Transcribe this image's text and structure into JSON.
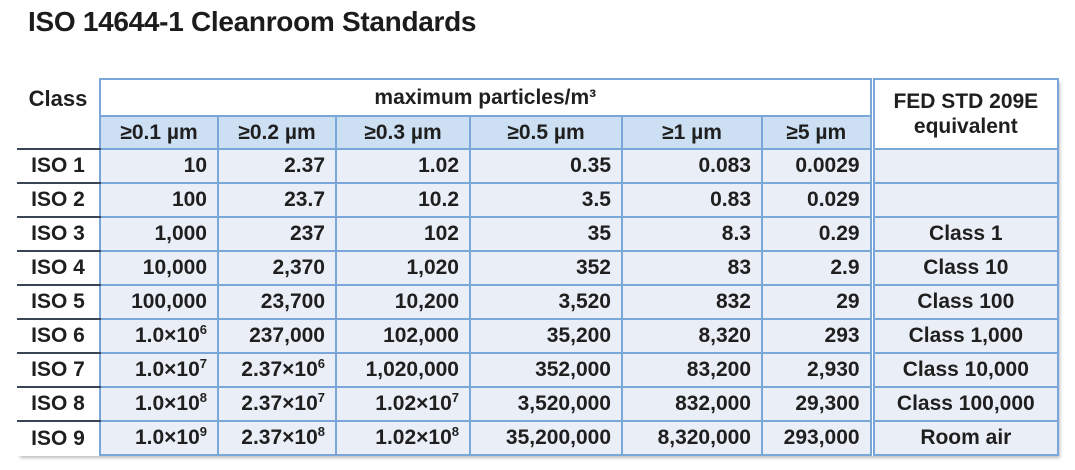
{
  "title": "ISO 14644-1 Cleanroom Standards",
  "colors": {
    "border_blue": "#7aa6d9",
    "size_header_fill": "#cddff2",
    "data_cell_fill": "#eaeff7",
    "class_divider_dark": "#3a4654",
    "text": "#1f1f1f",
    "background": "#ffffff"
  },
  "table": {
    "class_header": "Class",
    "group_header": "maximum particles/m³",
    "fed_header": "FED STD 209E equivalent",
    "size_headers": [
      "≥0.1 µm",
      "≥0.2 µm",
      "≥0.3 µm",
      "≥0.5 µm",
      "≥1 µm",
      "≥5 µm"
    ],
    "rows": [
      {
        "class": "ISO 1",
        "values": [
          "10",
          "2.37",
          "1.02",
          "0.35",
          "0.083",
          "0.0029"
        ],
        "fed": ""
      },
      {
        "class": "ISO 2",
        "values": [
          "100",
          "23.7",
          "10.2",
          "3.5",
          "0.83",
          "0.029"
        ],
        "fed": ""
      },
      {
        "class": "ISO 3",
        "values": [
          "1,000",
          "237",
          "102",
          "35",
          "8.3",
          "0.29"
        ],
        "fed": "Class 1"
      },
      {
        "class": "ISO 4",
        "values": [
          "10,000",
          "2,370",
          "1,020",
          "352",
          "83",
          "2.9"
        ],
        "fed": "Class 10"
      },
      {
        "class": "ISO 5",
        "values": [
          "100,000",
          "23,700",
          "10,200",
          "3,520",
          "832",
          "29"
        ],
        "fed": "Class 100"
      },
      {
        "class": "ISO 6",
        "values": [
          "1.0×10^6",
          "237,000",
          "102,000",
          "35,200",
          "8,320",
          "293"
        ],
        "fed": "Class 1,000"
      },
      {
        "class": "ISO 7",
        "values": [
          "1.0×10^7",
          "2.37×10^6",
          "1,020,000",
          "352,000",
          "83,200",
          "2,930"
        ],
        "fed": "Class 10,000"
      },
      {
        "class": "ISO 8",
        "values": [
          "1.0×10^8",
          "2.37×10^7",
          "1.02×10^7",
          "3,520,000",
          "832,000",
          "29,300"
        ],
        "fed": "Class 100,000"
      },
      {
        "class": "ISO 9",
        "values": [
          "1.0×10^9",
          "2.37×10^8",
          "1.02×10^8",
          "35,200,000",
          "8,320,000",
          "293,000"
        ],
        "fed": "Room air"
      }
    ]
  }
}
